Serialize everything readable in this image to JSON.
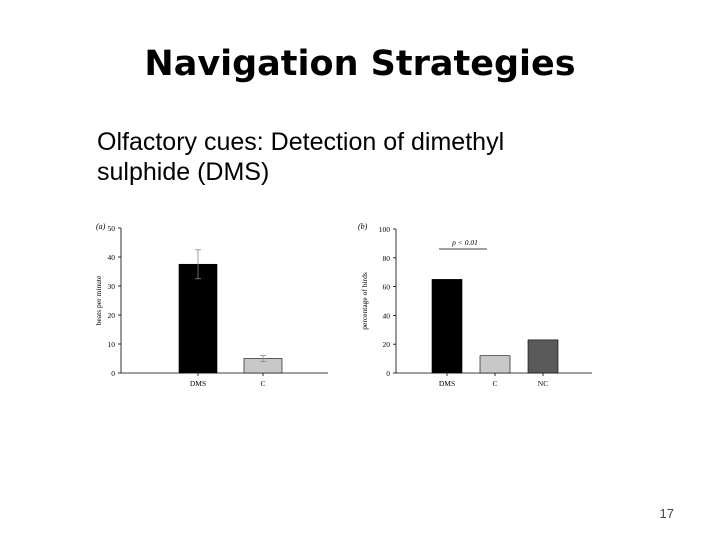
{
  "slide": {
    "title": "Navigation Strategies",
    "subtitle_line1": "Olfactory cues: Detection of dimethyl",
    "subtitle_line2": "sulphide (DMS)",
    "page_number": "17"
  },
  "chart_data": [
    {
      "type": "bar",
      "panel_label": "(a)",
      "categories": [
        "DMS",
        "C"
      ],
      "values": [
        37.5,
        5
      ],
      "error": [
        5,
        1
      ],
      "colors": [
        "#000000",
        "#c8c8c8"
      ],
      "ylabel": "beats per minute",
      "ylim": [
        0,
        50
      ],
      "yticks": [
        0,
        10,
        20,
        30,
        40,
        50
      ],
      "annotation": ""
    },
    {
      "type": "bar",
      "panel_label": "(b)",
      "categories": [
        "DMS",
        "C",
        "NC"
      ],
      "values": [
        65,
        12,
        23
      ],
      "colors": [
        "#000000",
        "#c8c8c8",
        "#5a5a5a"
      ],
      "ylabel": "percentage of birds",
      "ylim": [
        0,
        100
      ],
      "yticks": [
        0,
        20,
        40,
        60,
        80,
        100
      ],
      "annotation": "p < 0.01"
    }
  ]
}
